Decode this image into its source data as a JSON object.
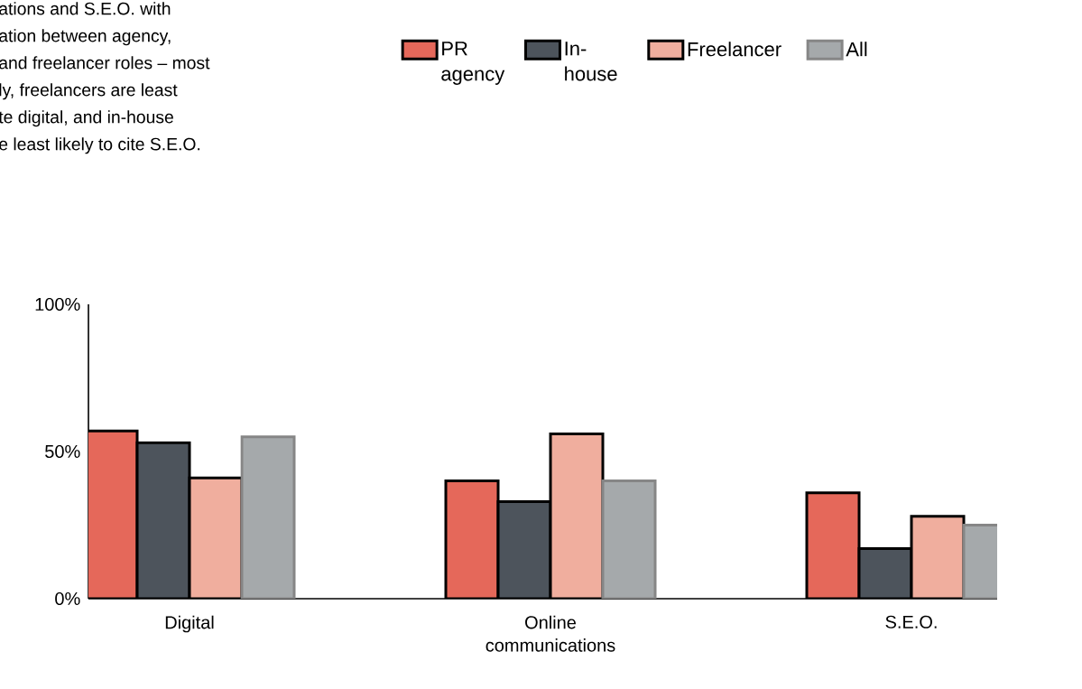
{
  "chart_data": {
    "type": "bar",
    "annotations": [
      "ations and S.E.O. with",
      "ation between agency,",
      "and freelancer roles – most",
      "ly, freelancers are least",
      "te digital, and in-house",
      "e least likely to cite S.E.O."
    ],
    "categories": [
      "Digital",
      "Online communications",
      "S.E.O."
    ],
    "series": [
      {
        "name": "PR agency",
        "color": "#e5685a",
        "values": [
          57,
          40,
          36
        ]
      },
      {
        "name": "In-house",
        "color": "#4d545c",
        "values": [
          53,
          33,
          17
        ]
      },
      {
        "name": "Freelancer",
        "color": "#f0ae9e",
        "values": [
          41,
          56,
          28
        ]
      },
      {
        "name": "All",
        "color": "#a5a9ab",
        "values": [
          55,
          40,
          25
        ]
      }
    ],
    "ylim": [
      0,
      100
    ],
    "yticks": [
      {
        "value": 0,
        "label": "0%"
      },
      {
        "value": 50,
        "label": "50%"
      },
      {
        "value": 100,
        "label": "100%"
      }
    ],
    "grid": false,
    "legend": "top"
  }
}
